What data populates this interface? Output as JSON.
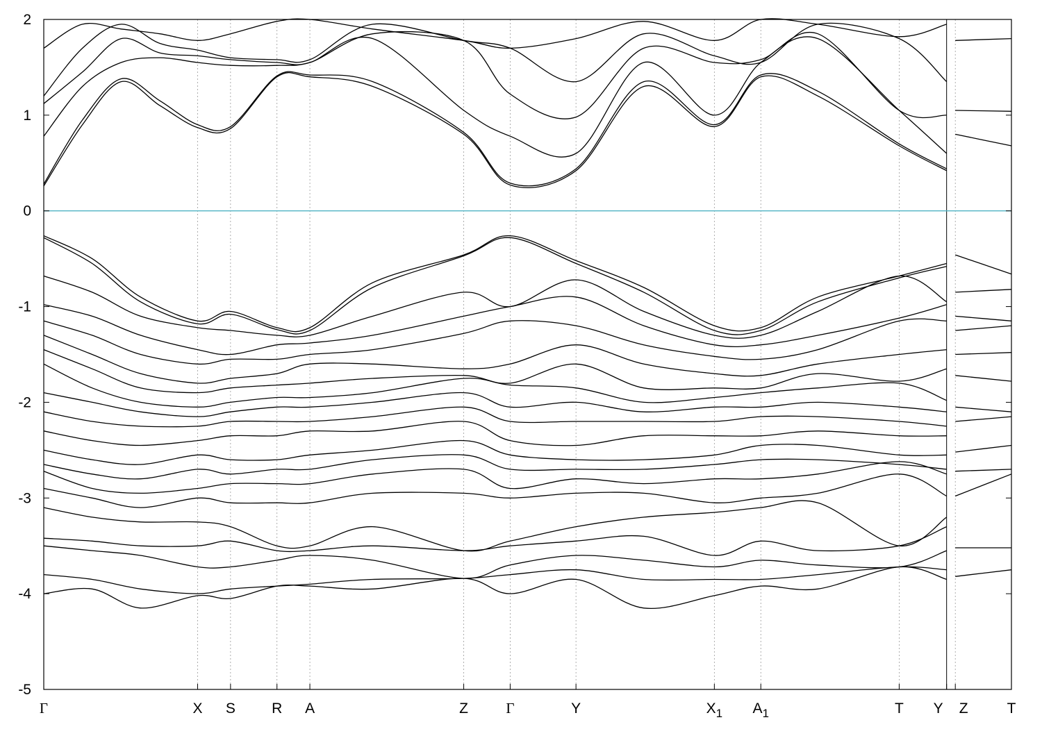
{
  "chart_data": {
    "type": "line",
    "title": "",
    "xlabel": "",
    "ylabel": "",
    "ylim": [
      -5,
      2
    ],
    "yticks": [
      "-5",
      "-4",
      "-3",
      "-2",
      "-1",
      "0",
      "1",
      "2"
    ],
    "kpoints": [
      {
        "label": "Γ",
        "sub": "",
        "pos": 0.0
      },
      {
        "label": "X",
        "sub": "",
        "pos": 0.159
      },
      {
        "label": "S",
        "sub": "",
        "pos": 0.193
      },
      {
        "label": "R",
        "sub": "",
        "pos": 0.241
      },
      {
        "label": "A",
        "sub": "",
        "pos": 0.275
      },
      {
        "label": "Z",
        "sub": "",
        "pos": 0.434
      },
      {
        "label": "Γ",
        "sub": "",
        "pos": 0.482
      },
      {
        "label": "Y",
        "sub": "",
        "pos": 0.55
      },
      {
        "label": "X",
        "sub": "1",
        "pos": 0.693
      },
      {
        "label": "A",
        "sub": "1",
        "pos": 0.741
      },
      {
        "label": "T",
        "sub": "",
        "pos": 0.884
      },
      {
        "label": "Y",
        "sub": "",
        "pos": 0.933
      },
      {
        "label": "Z",
        "sub": "",
        "pos": 0.942
      },
      {
        "label": "T",
        "sub": "",
        "pos": 1.0
      }
    ],
    "fermi_level": 0,
    "fermi_color": "#4fb3c4",
    "line_color": "#000000",
    "grid": "dotted vertical lines at k-points",
    "series": [
      {
        "x": [
          0,
          0.04,
          0.08,
          0.12,
          0.159,
          0.193,
          0.241,
          0.275,
          0.34,
          0.434,
          0.482,
          0.55,
          0.62,
          0.693,
          0.741,
          0.8,
          0.884,
          0.933
        ],
        "y": [
          0.26,
          0.9,
          1.35,
          1.1,
          0.87,
          0.86,
          1.4,
          1.4,
          1.3,
          0.8,
          0.27,
          0.42,
          1.3,
          0.88,
          1.4,
          1.2,
          0.68,
          0.42
        ]
      },
      {
        "x": [
          0,
          0.04,
          0.08,
          0.12,
          0.159,
          0.193,
          0.241,
          0.275,
          0.34,
          0.434,
          0.482,
          0.55,
          0.62,
          0.693,
          0.741,
          0.8,
          0.884,
          0.933
        ],
        "y": [
          0.28,
          0.95,
          1.38,
          1.15,
          0.9,
          0.88,
          1.41,
          1.42,
          1.35,
          0.82,
          0.29,
          0.44,
          1.35,
          0.9,
          1.42,
          1.25,
          0.7,
          0.44
        ]
      },
      {
        "x": [
          0,
          0.04,
          0.08,
          0.12,
          0.159,
          0.193,
          0.241,
          0.275,
          0.34,
          0.434,
          0.482,
          0.55,
          0.62,
          0.693,
          0.741,
          0.8,
          0.884,
          0.933
        ],
        "y": [
          0.78,
          1.3,
          1.55,
          1.6,
          1.55,
          1.52,
          1.52,
          1.55,
          1.8,
          1.05,
          0.78,
          0.6,
          1.55,
          1.0,
          1.55,
          1.8,
          1.05,
          0.6
        ]
      },
      {
        "x": [
          0,
          0.04,
          0.08,
          0.12,
          0.159,
          0.193,
          0.241,
          0.275,
          0.34,
          0.434,
          0.482,
          0.55,
          0.62,
          0.693,
          0.741,
          0.8,
          0.884,
          0.933
        ],
        "y": [
          1.12,
          1.45,
          1.8,
          1.65,
          1.62,
          1.58,
          1.55,
          1.55,
          1.85,
          1.78,
          1.22,
          0.98,
          1.7,
          1.55,
          1.58,
          1.85,
          1.05,
          1.0
        ]
      },
      {
        "x": [
          0,
          0.04,
          0.08,
          0.12,
          0.159,
          0.193,
          0.241,
          0.275,
          0.34,
          0.434,
          0.482,
          0.55,
          0.62,
          0.693,
          0.741,
          0.8,
          0.884,
          0.933
        ],
        "y": [
          1.2,
          1.7,
          1.95,
          1.75,
          1.68,
          1.6,
          1.58,
          1.58,
          1.95,
          1.78,
          1.7,
          1.35,
          1.85,
          1.62,
          1.55,
          1.95,
          1.8,
          1.35
        ]
      },
      {
        "x": [
          0,
          0.04,
          0.08,
          0.12,
          0.159,
          0.193,
          0.241,
          0.275,
          0.34,
          0.434,
          0.482,
          0.55,
          0.62,
          0.693,
          0.741,
          0.8,
          0.884,
          0.933
        ],
        "y": [
          1.7,
          1.95,
          1.9,
          1.85,
          1.78,
          1.85,
          1.98,
          2.0,
          1.9,
          1.78,
          1.7,
          1.8,
          1.98,
          1.78,
          2.0,
          1.95,
          1.82,
          1.95
        ]
      },
      {
        "x": [
          0.942,
          1.0
        ],
        "y": [
          0.8,
          0.68
        ]
      },
      {
        "x": [
          0.942,
          1.0
        ],
        "y": [
          1.05,
          1.04
        ]
      },
      {
        "x": [
          0.942,
          1.0
        ],
        "y": [
          1.78,
          1.8
        ]
      },
      {
        "x": [
          0,
          0.05,
          0.1,
          0.159,
          0.193,
          0.241,
          0.275,
          0.34,
          0.434,
          0.482,
          0.55,
          0.62,
          0.693,
          0.741,
          0.8,
          0.884,
          0.933
        ],
        "y": [
          -0.26,
          -0.5,
          -0.9,
          -1.15,
          -1.05,
          -1.22,
          -1.22,
          -0.75,
          -0.46,
          -0.26,
          -0.52,
          -0.8,
          -1.2,
          -1.22,
          -0.9,
          -0.68,
          -0.55
        ]
      },
      {
        "x": [
          0,
          0.05,
          0.1,
          0.159,
          0.193,
          0.241,
          0.275,
          0.34,
          0.434,
          0.482,
          0.55,
          0.62,
          0.693,
          0.741,
          0.8,
          0.884,
          0.933
        ],
        "y": [
          -0.28,
          -0.55,
          -0.95,
          -1.18,
          -1.08,
          -1.24,
          -1.25,
          -0.8,
          -0.47,
          -0.28,
          -0.55,
          -0.85,
          -1.25,
          -1.25,
          -0.95,
          -0.7,
          -0.58
        ]
      },
      {
        "x": [
          0,
          0.05,
          0.1,
          0.159,
          0.193,
          0.241,
          0.275,
          0.34,
          0.434,
          0.482,
          0.55,
          0.62,
          0.693,
          0.741,
          0.8,
          0.884,
          0.933
        ],
        "y": [
          -0.68,
          -0.85,
          -1.1,
          -1.22,
          -1.25,
          -1.3,
          -1.3,
          -1.1,
          -0.85,
          -1.0,
          -0.72,
          -1.05,
          -1.3,
          -1.3,
          -1.05,
          -0.68,
          -0.95
        ]
      },
      {
        "x": [
          0,
          0.05,
          0.1,
          0.159,
          0.193,
          0.241,
          0.275,
          0.34,
          0.434,
          0.482,
          0.55,
          0.62,
          0.693,
          0.741,
          0.8,
          0.884,
          0.933
        ],
        "y": [
          -0.98,
          -1.1,
          -1.3,
          -1.45,
          -1.5,
          -1.4,
          -1.38,
          -1.3,
          -1.1,
          -1.0,
          -0.9,
          -1.2,
          -1.4,
          -1.4,
          -1.3,
          -1.12,
          -0.98
        ]
      },
      {
        "x": [
          0,
          0.05,
          0.1,
          0.159,
          0.193,
          0.241,
          0.275,
          0.34,
          0.434,
          0.482,
          0.55,
          0.62,
          0.693,
          0.741,
          0.8,
          0.884,
          0.933
        ],
        "y": [
          -1.15,
          -1.3,
          -1.5,
          -1.6,
          -1.55,
          -1.55,
          -1.5,
          -1.45,
          -1.28,
          -1.15,
          -1.2,
          -1.4,
          -1.52,
          -1.55,
          -1.45,
          -1.15,
          -1.15
        ]
      },
      {
        "x": [
          0,
          0.05,
          0.1,
          0.159,
          0.193,
          0.241,
          0.275,
          0.34,
          0.434,
          0.482,
          0.55,
          0.62,
          0.693,
          0.741,
          0.8,
          0.884,
          0.933
        ],
        "y": [
          -1.3,
          -1.5,
          -1.7,
          -1.8,
          -1.75,
          -1.7,
          -1.6,
          -1.6,
          -1.65,
          -1.6,
          -1.4,
          -1.6,
          -1.7,
          -1.72,
          -1.6,
          -1.5,
          -1.45
        ]
      },
      {
        "x": [
          0,
          0.05,
          0.1,
          0.159,
          0.193,
          0.241,
          0.275,
          0.34,
          0.434,
          0.482,
          0.55,
          0.62,
          0.693,
          0.741,
          0.8,
          0.884,
          0.933
        ],
        "y": [
          -1.45,
          -1.65,
          -1.85,
          -1.9,
          -1.85,
          -1.82,
          -1.8,
          -1.75,
          -1.72,
          -1.8,
          -1.6,
          -1.85,
          -1.85,
          -1.85,
          -1.7,
          -1.78,
          -1.65
        ]
      },
      {
        "x": [
          0,
          0.05,
          0.1,
          0.159,
          0.193,
          0.241,
          0.275,
          0.34,
          0.434,
          0.482,
          0.55,
          0.62,
          0.693,
          0.741,
          0.8,
          0.884,
          0.933
        ],
        "y": [
          -1.6,
          -1.85,
          -2.0,
          -2.05,
          -2.0,
          -1.95,
          -1.95,
          -1.9,
          -1.75,
          -1.82,
          -1.85,
          -2.0,
          -1.95,
          -1.9,
          -1.85,
          -1.8,
          -1.98
        ]
      },
      {
        "x": [
          0,
          0.05,
          0.1,
          0.159,
          0.193,
          0.241,
          0.275,
          0.34,
          0.434,
          0.482,
          0.55,
          0.62,
          0.693,
          0.741,
          0.8,
          0.884,
          0.933
        ],
        "y": [
          -1.9,
          -2.0,
          -2.1,
          -2.15,
          -2.1,
          -2.05,
          -2.05,
          -2.0,
          -1.9,
          -2.05,
          -2.0,
          -2.1,
          -2.05,
          -2.05,
          -2.0,
          -2.05,
          -2.1
        ]
      },
      {
        "x": [
          0,
          0.05,
          0.1,
          0.159,
          0.193,
          0.241,
          0.275,
          0.34,
          0.434,
          0.482,
          0.55,
          0.62,
          0.693,
          0.741,
          0.8,
          0.884,
          0.933
        ],
        "y": [
          -2.1,
          -2.2,
          -2.25,
          -2.25,
          -2.2,
          -2.2,
          -2.2,
          -2.15,
          -2.05,
          -2.2,
          -2.2,
          -2.2,
          -2.2,
          -2.15,
          -2.15,
          -2.2,
          -2.25
        ]
      },
      {
        "x": [
          0,
          0.05,
          0.1,
          0.159,
          0.193,
          0.241,
          0.275,
          0.34,
          0.434,
          0.482,
          0.55,
          0.62,
          0.693,
          0.741,
          0.8,
          0.884,
          0.933
        ],
        "y": [
          -2.3,
          -2.4,
          -2.45,
          -2.4,
          -2.35,
          -2.35,
          -2.3,
          -2.3,
          -2.2,
          -2.4,
          -2.45,
          -2.35,
          -2.35,
          -2.35,
          -2.3,
          -2.35,
          -2.35
        ]
      },
      {
        "x": [
          0,
          0.05,
          0.1,
          0.159,
          0.193,
          0.241,
          0.275,
          0.34,
          0.434,
          0.482,
          0.55,
          0.62,
          0.693,
          0.741,
          0.8,
          0.884,
          0.933
        ],
        "y": [
          -2.5,
          -2.6,
          -2.65,
          -2.55,
          -2.6,
          -2.6,
          -2.55,
          -2.5,
          -2.4,
          -2.55,
          -2.6,
          -2.6,
          -2.55,
          -2.45,
          -2.45,
          -2.55,
          -2.55
        ]
      },
      {
        "x": [
          0,
          0.05,
          0.1,
          0.159,
          0.193,
          0.241,
          0.275,
          0.34,
          0.434,
          0.482,
          0.55,
          0.62,
          0.693,
          0.741,
          0.8,
          0.884,
          0.933
        ],
        "y": [
          -2.65,
          -2.75,
          -2.8,
          -2.7,
          -2.75,
          -2.7,
          -2.7,
          -2.6,
          -2.55,
          -2.7,
          -2.7,
          -2.7,
          -2.65,
          -2.6,
          -2.6,
          -2.65,
          -2.7
        ]
      },
      {
        "x": [
          0,
          0.05,
          0.1,
          0.159,
          0.193,
          0.241,
          0.275,
          0.34,
          0.434,
          0.482,
          0.55,
          0.62,
          0.693,
          0.741,
          0.8,
          0.884,
          0.933
        ],
        "y": [
          -2.72,
          -2.9,
          -2.95,
          -2.9,
          -2.85,
          -2.85,
          -2.85,
          -2.75,
          -2.7,
          -2.9,
          -2.8,
          -2.85,
          -2.8,
          -2.8,
          -2.75,
          -2.62,
          -2.75
        ]
      },
      {
        "x": [
          0,
          0.05,
          0.1,
          0.159,
          0.193,
          0.241,
          0.275,
          0.34,
          0.434,
          0.482,
          0.55,
          0.62,
          0.693,
          0.741,
          0.8,
          0.884,
          0.933
        ],
        "y": [
          -2.9,
          -3.0,
          -3.1,
          -3.0,
          -3.05,
          -3.05,
          -3.05,
          -2.95,
          -2.95,
          -3.0,
          -2.95,
          -2.95,
          -3.05,
          -3.0,
          -2.95,
          -2.75,
          -2.98
        ]
      },
      {
        "x": [
          0,
          0.05,
          0.1,
          0.159,
          0.193,
          0.241,
          0.275,
          0.34,
          0.434,
          0.482,
          0.55,
          0.62,
          0.693,
          0.741,
          0.8,
          0.884,
          0.933
        ],
        "y": [
          -3.1,
          -3.2,
          -3.25,
          -3.25,
          -3.3,
          -3.5,
          -3.5,
          -3.3,
          -3.55,
          -3.45,
          -3.3,
          -3.2,
          -3.15,
          -3.1,
          -3.05,
          -3.5,
          -3.2
        ]
      },
      {
        "x": [
          0,
          0.05,
          0.1,
          0.159,
          0.193,
          0.241,
          0.275,
          0.34,
          0.434,
          0.482,
          0.55,
          0.62,
          0.693,
          0.741,
          0.8,
          0.884,
          0.933
        ],
        "y": [
          -3.42,
          -3.45,
          -3.5,
          -3.5,
          -3.45,
          -3.55,
          -3.55,
          -3.5,
          -3.55,
          -3.5,
          -3.45,
          -3.4,
          -3.6,
          -3.45,
          -3.55,
          -3.5,
          -3.3
        ]
      },
      {
        "x": [
          0,
          0.05,
          0.1,
          0.159,
          0.193,
          0.241,
          0.275,
          0.34,
          0.434,
          0.482,
          0.55,
          0.62,
          0.693,
          0.741,
          0.8,
          0.884,
          0.933
        ],
        "y": [
          -3.5,
          -3.55,
          -3.6,
          -3.72,
          -3.72,
          -3.65,
          -3.6,
          -3.65,
          -3.84,
          -3.7,
          -3.6,
          -3.65,
          -3.72,
          -3.65,
          -3.7,
          -3.72,
          -3.55
        ]
      },
      {
        "x": [
          0,
          0.05,
          0.1,
          0.159,
          0.193,
          0.241,
          0.275,
          0.34,
          0.434,
          0.482,
          0.55,
          0.62,
          0.693,
          0.741,
          0.8,
          0.884,
          0.933
        ],
        "y": [
          -3.8,
          -3.85,
          -3.95,
          -4.0,
          -3.95,
          -3.92,
          -3.9,
          -3.85,
          -3.84,
          -3.8,
          -3.75,
          -3.85,
          -3.85,
          -3.85,
          -3.8,
          -3.72,
          -3.75
        ]
      },
      {
        "x": [
          0,
          0.05,
          0.1,
          0.159,
          0.193,
          0.241,
          0.275,
          0.34,
          0.434,
          0.482,
          0.55,
          0.62,
          0.693,
          0.741,
          0.8,
          0.884,
          0.933
        ],
        "y": [
          -4.0,
          -3.95,
          -4.15,
          -4.02,
          -4.05,
          -3.92,
          -3.92,
          -3.95,
          -3.84,
          -4.0,
          -3.85,
          -4.15,
          -4.02,
          -3.92,
          -3.95,
          -3.72,
          -3.85
        ]
      },
      {
        "x": [
          0.942,
          1.0
        ],
        "y": [
          -0.46,
          -0.66
        ]
      },
      {
        "x": [
          0.942,
          1.0
        ],
        "y": [
          -0.85,
          -0.82
        ]
      },
      {
        "x": [
          0.942,
          1.0
        ],
        "y": [
          -1.1,
          -1.15
        ]
      },
      {
        "x": [
          0.942,
          1.0
        ],
        "y": [
          -1.25,
          -1.2
        ]
      },
      {
        "x": [
          0.942,
          1.0
        ],
        "y": [
          -1.5,
          -1.48
        ]
      },
      {
        "x": [
          0.942,
          1.0
        ],
        "y": [
          -1.72,
          -1.78
        ]
      },
      {
        "x": [
          0.942,
          1.0
        ],
        "y": [
          -2.05,
          -2.1
        ]
      },
      {
        "x": [
          0.942,
          1.0
        ],
        "y": [
          -2.2,
          -2.15
        ]
      },
      {
        "x": [
          0.942,
          1.0
        ],
        "y": [
          -2.52,
          -2.45
        ]
      },
      {
        "x": [
          0.942,
          1.0
        ],
        "y": [
          -2.72,
          -2.7
        ]
      },
      {
        "x": [
          0.942,
          1.0
        ],
        "y": [
          -2.98,
          -2.75
        ]
      },
      {
        "x": [
          0.942,
          1.0
        ],
        "y": [
          -3.52,
          -3.52
        ]
      },
      {
        "x": [
          0.942,
          1.0
        ],
        "y": [
          -3.82,
          -3.75
        ]
      }
    ]
  }
}
